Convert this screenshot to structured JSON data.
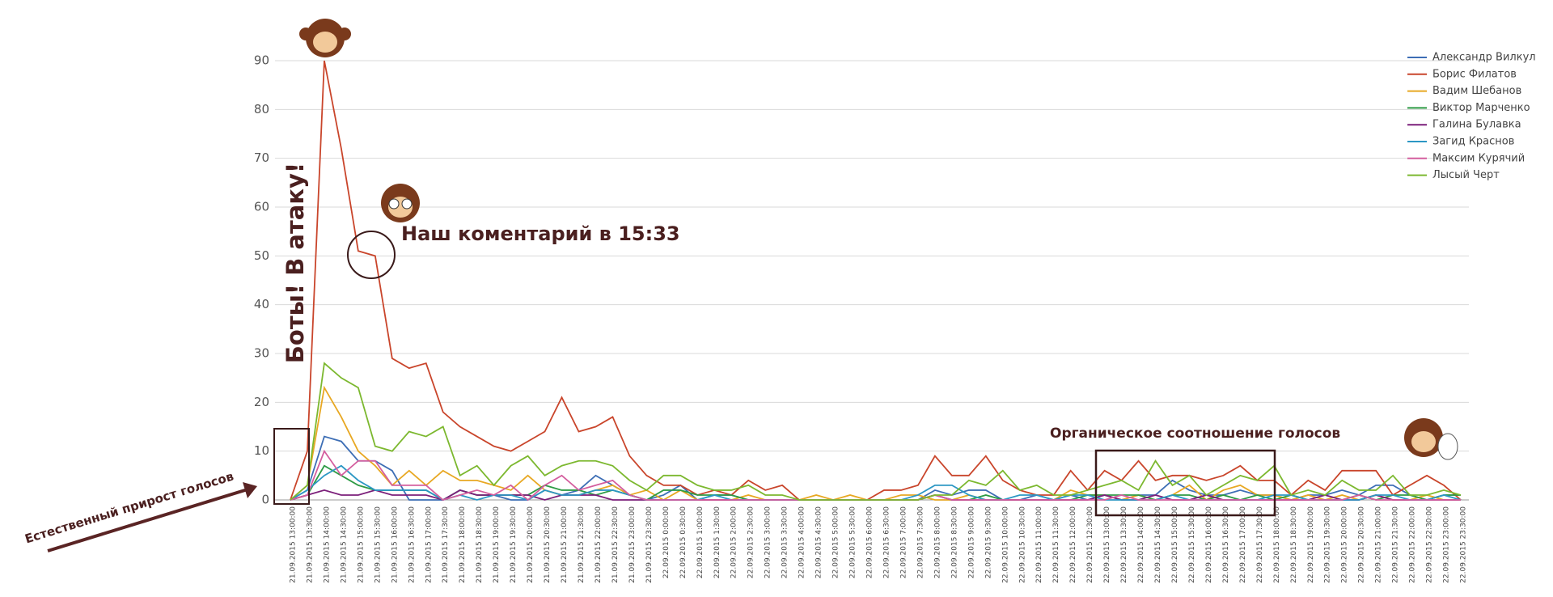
{
  "chart_data": {
    "type": "line",
    "categories": [
      "21.09.2015 13:00:00",
      "21.09.2015 13:30:00",
      "21.09.2015 14:00:00",
      "21.09.2015 14:30:00",
      "21.09.2015 15:00:00",
      "21.09.2015 15:30:00",
      "21.09.2015 16:00:00",
      "21.09.2015 16:30:00",
      "21.09.2015 17:00:00",
      "21.09.2015 17:30:00",
      "21.09.2015 18:00:00",
      "21.09.2015 18:30:00",
      "21.09.2015 19:00:00",
      "21.09.2015 19:30:00",
      "21.09.2015 20:00:00",
      "21.09.2015 20:30:00",
      "21.09.2015 21:00:00",
      "21.09.2015 21:30:00",
      "21.09.2015 22:00:00",
      "21.09.2015 22:30:00",
      "21.09.2015 23:00:00",
      "21.09.2015 23:30:00",
      "22.09.2015 0:00:00",
      "22.09.2015 0:30:00",
      "22.09.2015 1:00:00",
      "22.09.2015 1:30:00",
      "22.09.2015 2:00:00",
      "22.09.2015 2:30:00",
      "22.09.2015 3:00:00",
      "22.09.2015 3:30:00",
      "22.09.2015 4:00:00",
      "22.09.2015 4:30:00",
      "22.09.2015 5:00:00",
      "22.09.2015 5:30:00",
      "22.09.2015 6:00:00",
      "22.09.2015 6:30:00",
      "22.09.2015 7:00:00",
      "22.09.2015 7:30:00",
      "22.09.2015 8:00:00",
      "22.09.2015 8:30:00",
      "22.09.2015 9:00:00",
      "22.09.2015 9:30:00",
      "22.09.2015 10:00:00",
      "22.09.2015 10:30:00",
      "22.09.2015 11:00:00",
      "22.09.2015 11:30:00",
      "22.09.2015 12:00:00",
      "22.09.2015 12:30:00",
      "22.09.2015 13:00:00",
      "22.09.2015 13:30:00",
      "22.09.2015 14:00:00",
      "22.09.2015 14:30:00",
      "22.09.2015 15:00:00",
      "22.09.2015 15:30:00",
      "22.09.2015 16:00:00",
      "22.09.2015 16:30:00",
      "22.09.2015 17:00:00",
      "22.09.2015 17:30:00",
      "22.09.2015 18:00:00",
      "22.09.2015 18:30:00",
      "22.09.2015 19:00:00",
      "22.09.2015 19:30:00",
      "22.09.2015 20:00:00",
      "22.09.2015 20:30:00",
      "22.09.2015 21:00:00",
      "22.09.2015 21:30:00",
      "22.09.2015 22:00:00",
      "22.09.2015 22:30:00",
      "22.09.2015 23:00:00",
      "22.09.2015 23:30:00"
    ],
    "series": [
      {
        "name": "Александр Вилкул",
        "color": "#3d6eb5",
        "values": [
          0,
          2,
          13,
          12,
          8,
          8,
          6,
          0,
          0,
          0,
          2,
          1,
          1,
          0,
          0,
          2,
          1,
          2,
          5,
          3,
          1,
          0,
          1,
          3,
          0,
          1,
          1,
          0,
          0,
          0,
          0,
          0,
          0,
          0,
          0,
          0,
          0,
          0,
          2,
          1,
          2,
          2,
          0,
          0,
          1,
          0,
          1,
          0,
          1,
          0,
          1,
          1,
          4,
          2,
          1,
          1,
          2,
          1,
          1,
          0,
          1,
          1,
          2,
          1,
          3,
          3,
          1,
          0,
          1,
          1
        ]
      },
      {
        "name": "Борис Филатов",
        "color": "#c9452b",
        "values": [
          0,
          10,
          90,
          72,
          51,
          50,
          29,
          27,
          28,
          18,
          15,
          13,
          11,
          10,
          12,
          14,
          21,
          14,
          15,
          17,
          9,
          5,
          3,
          3,
          1,
          2,
          1,
          4,
          2,
          3,
          0,
          0,
          0,
          0,
          0,
          2,
          2,
          3,
          9,
          5,
          5,
          9,
          4,
          2,
          1,
          1,
          6,
          2,
          6,
          4,
          8,
          4,
          5,
          5,
          4,
          5,
          7,
          4,
          4,
          1,
          4,
          2,
          6,
          6,
          6,
          1,
          3,
          5,
          3,
          0
        ]
      },
      {
        "name": "Вадим Шебанов",
        "color": "#e8a823",
        "values": [
          0,
          3,
          23,
          17,
          10,
          7,
          3,
          6,
          3,
          6,
          4,
          4,
          3,
          2,
          5,
          2,
          1,
          1,
          2,
          3,
          1,
          2,
          0,
          2,
          0,
          0,
          0,
          1,
          0,
          0,
          0,
          1,
          0,
          1,
          0,
          0,
          1,
          1,
          0,
          0,
          1,
          0,
          0,
          0,
          0,
          0,
          2,
          1,
          1,
          0,
          1,
          0,
          1,
          3,
          0,
          2,
          3,
          1,
          1,
          0,
          1,
          0,
          1,
          0,
          1,
          0,
          0,
          1,
          0,
          0
        ]
      },
      {
        "name": "Виктор Марченко",
        "color": "#2e9b45",
        "values": [
          0,
          1,
          7,
          5,
          3,
          2,
          2,
          2,
          2,
          0,
          2,
          1,
          1,
          1,
          1,
          3,
          2,
          2,
          1,
          2,
          1,
          0,
          2,
          2,
          1,
          1,
          1,
          0,
          0,
          0,
          0,
          0,
          0,
          0,
          0,
          0,
          0,
          0,
          1,
          0,
          0,
          1,
          0,
          0,
          0,
          0,
          0,
          1,
          1,
          1,
          1,
          0,
          1,
          1,
          0,
          1,
          0,
          1,
          0,
          1,
          0,
          0,
          0,
          1,
          0,
          1,
          1,
          0,
          1,
          1
        ]
      },
      {
        "name": "Галина Булавка",
        "color": "#7b1f7a",
        "values": [
          0,
          1,
          2,
          1,
          1,
          2,
          1,
          1,
          1,
          0,
          2,
          1,
          1,
          1,
          1,
          0,
          1,
          1,
          1,
          0,
          0,
          0,
          0,
          0,
          0,
          0,
          0,
          0,
          0,
          0,
          0,
          0,
          0,
          0,
          0,
          0,
          0,
          0,
          1,
          0,
          0,
          0,
          0,
          0,
          0,
          0,
          0,
          0,
          1,
          0,
          0,
          1,
          0,
          0,
          1,
          0,
          0,
          0,
          0,
          0,
          0,
          1,
          0,
          0,
          1,
          0,
          0,
          0,
          0,
          0
        ]
      },
      {
        "name": "Загид Краснов",
        "color": "#2c97c4",
        "values": [
          0,
          2,
          5,
          7,
          4,
          2,
          2,
          2,
          2,
          0,
          1,
          0,
          1,
          1,
          0,
          2,
          1,
          1,
          2,
          2,
          1,
          0,
          0,
          0,
          0,
          1,
          0,
          0,
          0,
          0,
          0,
          0,
          0,
          0,
          0,
          0,
          0,
          1,
          3,
          3,
          1,
          0,
          0,
          1,
          1,
          0,
          1,
          1,
          0,
          0,
          0,
          0,
          1,
          0,
          0,
          0,
          0,
          0,
          1,
          1,
          0,
          0,
          0,
          0,
          1,
          1,
          0,
          0,
          1,
          0
        ]
      },
      {
        "name": "Максим Курячий",
        "color": "#d45e9e",
        "values": [
          0,
          1,
          10,
          5,
          8,
          8,
          3,
          3,
          3,
          0,
          1,
          2,
          1,
          3,
          0,
          3,
          5,
          2,
          3,
          4,
          1,
          0,
          0,
          0,
          0,
          0,
          0,
          0,
          0,
          0,
          0,
          0,
          0,
          0,
          0,
          0,
          0,
          0,
          1,
          0,
          0,
          0,
          0,
          0,
          0,
          0,
          0,
          0,
          0,
          1,
          0,
          0,
          0,
          0,
          0,
          0,
          0,
          0,
          0,
          0,
          0,
          0,
          0,
          1,
          0,
          0,
          0,
          0,
          0,
          0
        ]
      },
      {
        "name": "Лысый Черт",
        "color": "#7cb82f",
        "values": [
          0,
          3,
          28,
          25,
          23,
          11,
          10,
          14,
          13,
          15,
          5,
          7,
          3,
          7,
          9,
          5,
          7,
          8,
          8,
          7,
          4,
          2,
          5,
          5,
          3,
          2,
          2,
          3,
          1,
          1,
          0,
          0,
          0,
          0,
          0,
          0,
          0,
          0,
          1,
          1,
          4,
          3,
          6,
          2,
          3,
          1,
          1,
          2,
          3,
          4,
          2,
          8,
          3,
          5,
          1,
          3,
          5,
          4,
          7,
          1,
          2,
          1,
          4,
          2,
          2,
          5,
          1,
          1,
          2,
          1
        ]
      }
    ],
    "ylim": [
      0,
      90
    ],
    "yticks": [
      0,
      10,
      20,
      30,
      40,
      50,
      60,
      70,
      80,
      90
    ],
    "grid": true,
    "legend": "top-right",
    "annotations": [
      "Боты! В атаку!",
      "Наш коментарий в 15:33",
      "Органическое соотношение голосов",
      "Естественный прирост голосов"
    ]
  }
}
